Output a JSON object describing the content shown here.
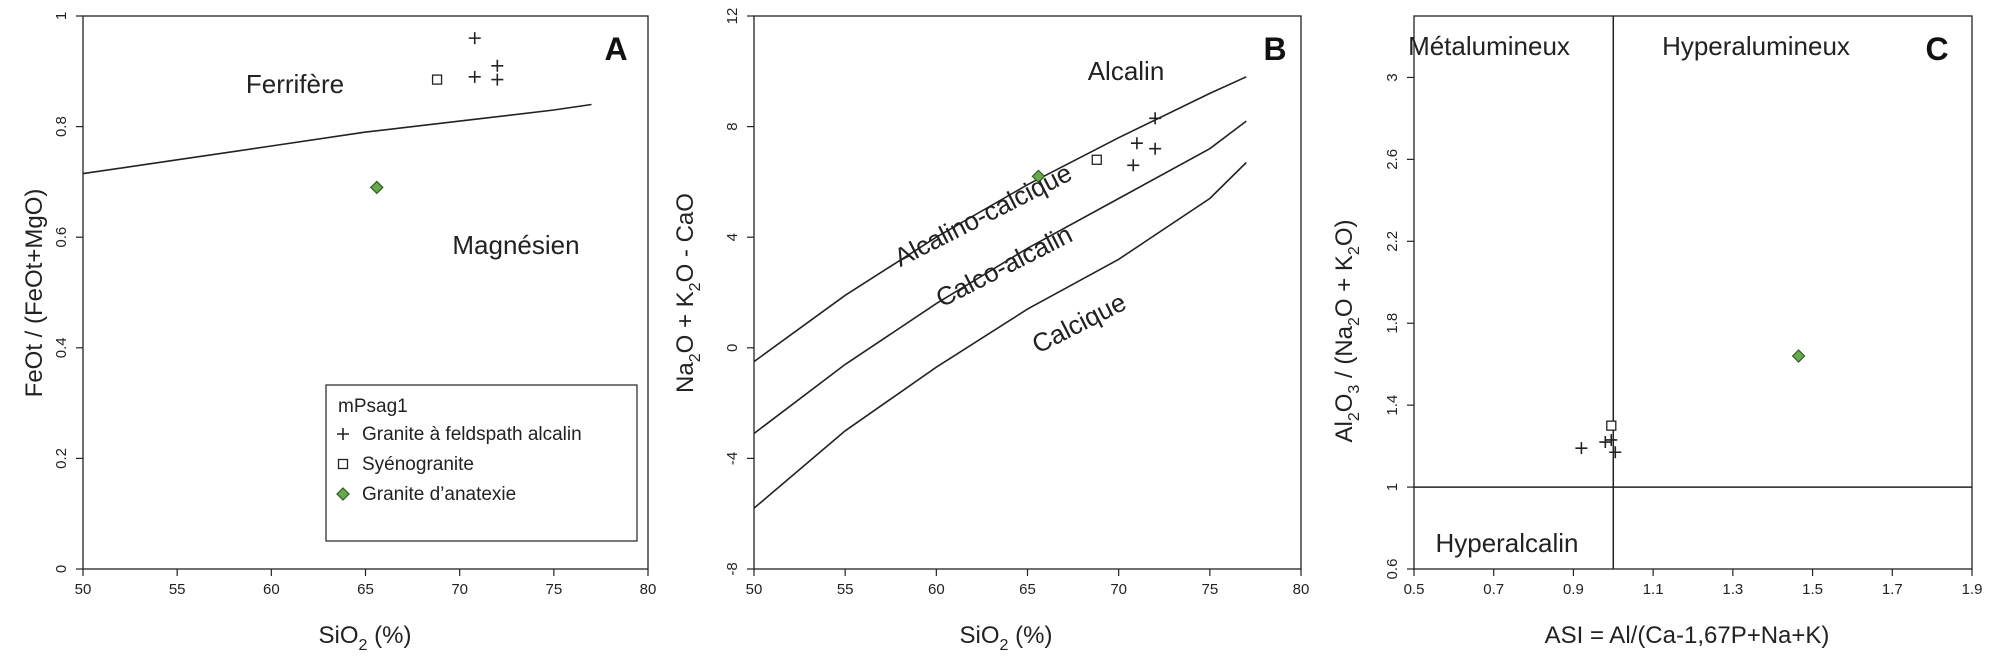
{
  "colors": {
    "axis": "#222222",
    "anatexie_fill": "#6aa84f",
    "anatexie_stroke": "#2e5e1e"
  },
  "legend": {
    "title": "mPsag1",
    "items": [
      {
        "symbol": "plus",
        "label": "Granite à feldspath alcalin"
      },
      {
        "symbol": "square",
        "label": "Syénogranite"
      },
      {
        "symbol": "diamond",
        "label": "Granite d’anatexie"
      }
    ]
  },
  "chart_data": [
    {
      "type": "scatter",
      "panel": "A",
      "xlabel": "SiO2 (%)",
      "ylabel": "FeOt / (FeOt+MgO)",
      "xlim": [
        50,
        80
      ],
      "ylim": [
        0,
        1
      ],
      "xticks": [
        "50",
        "55",
        "60",
        "65",
        "70",
        "75",
        "80"
      ],
      "yticks": [
        "0",
        "0.2",
        "0.4",
        "0.6",
        "0.8",
        "1"
      ],
      "regions": [
        "Ferrifère",
        "Magnésien"
      ],
      "boundary": [
        [
          50,
          0.715
        ],
        [
          55,
          0.74
        ],
        [
          60,
          0.765
        ],
        [
          65,
          0.79
        ],
        [
          70,
          0.81
        ],
        [
          75,
          0.83
        ],
        [
          77,
          0.84
        ]
      ],
      "series": [
        {
          "name": "Granite à feldspath alcalin",
          "symbol": "plus",
          "x": [
            70.8,
            72.0,
            70.8,
            72.0
          ],
          "y": [
            0.96,
            0.91,
            0.89,
            0.885
          ]
        },
        {
          "name": "Syénogranite",
          "symbol": "square",
          "x": [
            68.8
          ],
          "y": [
            0.885
          ]
        },
        {
          "name": "Granite d’anatexie",
          "symbol": "diamond",
          "x": [
            65.6
          ],
          "y": [
            0.69
          ]
        }
      ]
    },
    {
      "type": "scatter",
      "panel": "B",
      "xlabel": "SiO2 (%)",
      "ylabel": "Na2O + K2O - CaO",
      "xlim": [
        50,
        80
      ],
      "ylim": [
        -8,
        12
      ],
      "xticks": [
        "50",
        "55",
        "60",
        "65",
        "70",
        "75",
        "80"
      ],
      "yticks": [
        "-8",
        "-4",
        "0",
        "4",
        "8",
        "12"
      ],
      "regions": [
        "Alcalin",
        "Alcalino-calcique",
        "Calco-alcalin",
        "Calcique"
      ],
      "boundaries": [
        [
          [
            50,
            -0.5
          ],
          [
            55,
            1.9
          ],
          [
            60,
            4.0
          ],
          [
            65,
            5.9
          ],
          [
            70,
            7.6
          ],
          [
            75,
            9.2
          ],
          [
            77,
            9.8
          ]
        ],
        [
          [
            50,
            -3.1
          ],
          [
            55,
            -0.6
          ],
          [
            60,
            1.6
          ],
          [
            65,
            3.6
          ],
          [
            70,
            5.4
          ],
          [
            75,
            7.2
          ],
          [
            77,
            8.2
          ]
        ],
        [
          [
            50,
            -5.8
          ],
          [
            55,
            -3.0
          ],
          [
            60,
            -0.7
          ],
          [
            65,
            1.4
          ],
          [
            70,
            3.2
          ],
          [
            75,
            5.4
          ],
          [
            77,
            6.7
          ]
        ]
      ],
      "series": [
        {
          "name": "Granite à feldspath alcalin",
          "symbol": "plus",
          "x": [
            72.0,
            71.0,
            72.0,
            70.8
          ],
          "y": [
            8.3,
            7.4,
            7.2,
            6.6
          ]
        },
        {
          "name": "Syénogranite",
          "symbol": "square",
          "x": [
            68.8
          ],
          "y": [
            6.8
          ]
        },
        {
          "name": "Granite d’anatexie",
          "symbol": "diamond",
          "x": [
            65.6
          ],
          "y": [
            6.2
          ]
        }
      ]
    },
    {
      "type": "scatter",
      "panel": "C",
      "xlabel": "ASI = Al/(Ca-1,67P+Na+K)",
      "ylabel": "Al2O3 / (Na2O + K2O)",
      "xlim": [
        0.5,
        1.9
      ],
      "ylim": [
        0.6,
        3.3
      ],
      "xticks": [
        "0.5",
        "0.7",
        "0.9",
        "1.1",
        "1.3",
        "1.5",
        "1.7",
        "1.9"
      ],
      "yticks": [
        "0.6",
        "1",
        "1.4",
        "1.8",
        "2.2",
        "2.6",
        "3"
      ],
      "regions": [
        "Métalumineux",
        "Hyperalumineux",
        "Hyperalcalin"
      ],
      "divider_x": 1.0,
      "divider_y": 1.0,
      "series": [
        {
          "name": "Granite à feldspath alcalin",
          "symbol": "plus",
          "x": [
            0.92,
            0.98,
            0.995,
            1.005
          ],
          "y": [
            1.19,
            1.22,
            1.23,
            1.17
          ]
        },
        {
          "name": "Syénogranite",
          "symbol": "square",
          "x": [
            0.995
          ],
          "y": [
            1.3
          ]
        },
        {
          "name": "Granite d’anatexie",
          "symbol": "diamond",
          "x": [
            1.465
          ],
          "y": [
            1.64
          ]
        }
      ]
    }
  ]
}
